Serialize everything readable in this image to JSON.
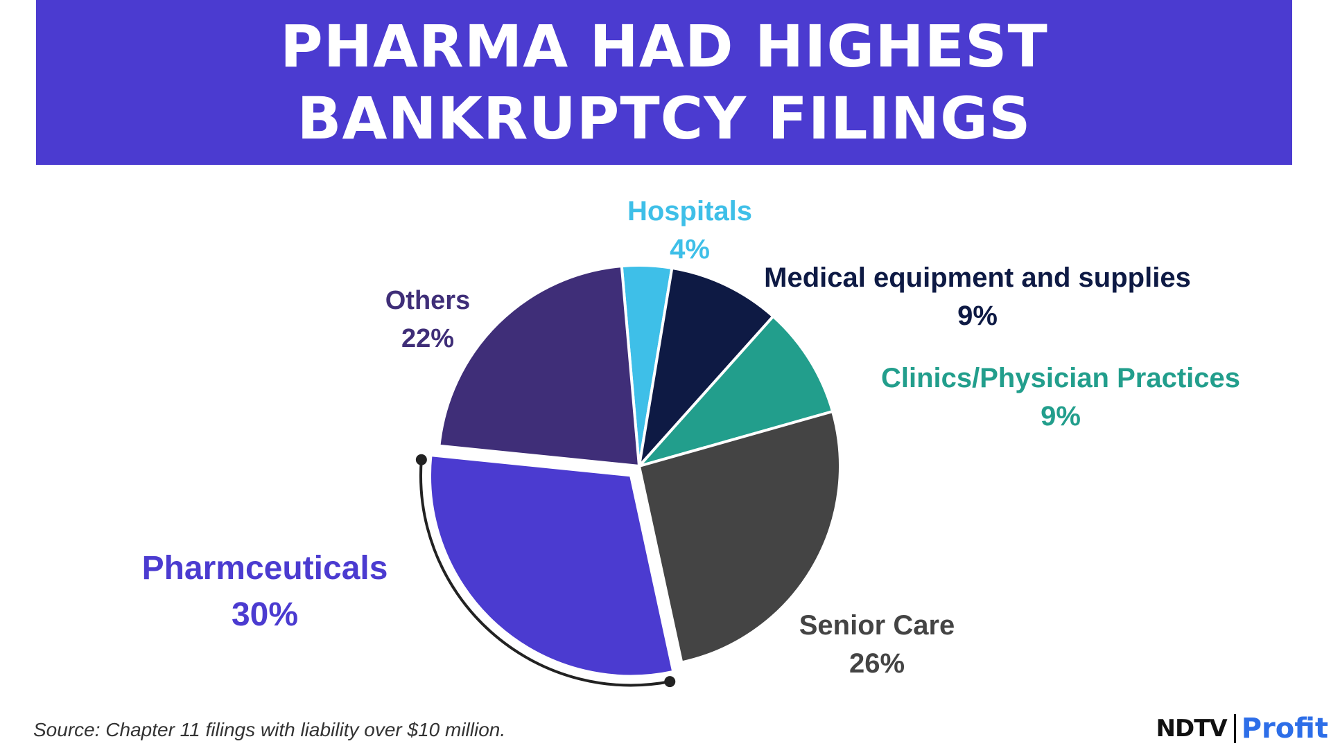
{
  "title": {
    "line1": "PHARMA HAD HIGHEST",
    "line2": "BANKRUPTCY FILINGS"
  },
  "colors": {
    "banner": "#4b3bd0",
    "pharmaceuticals": "#4b3bd0",
    "others": "#3f2e78",
    "hospitals": "#3ebfe8",
    "medical_equipment": "#0e1a44",
    "clinics": "#229e8c",
    "senior_care": "#444444",
    "brand_profit": "#2d6ee8"
  },
  "chart_data": {
    "type": "pie",
    "title": "PHARMA HAD HIGHEST BANKRUPTCY FILINGS",
    "unit": "%",
    "start_angle_deg": -5,
    "direction": "clockwise",
    "highlighted": "Pharmceuticals",
    "slices": [
      {
        "label": "Hospitals",
        "value": 4,
        "value_label": "4%",
        "color": "#3ebfe8",
        "label_color": "#3ebfe8"
      },
      {
        "label": "Medical equipment and supplies",
        "value": 9,
        "value_label": "9%",
        "color": "#0e1a44",
        "label_color": "#0e1a44"
      },
      {
        "label": "Clinics/Physician Practices",
        "value": 9,
        "value_label": "9%",
        "color": "#229e8c",
        "label_color": "#229e8c"
      },
      {
        "label": "Senior Care",
        "value": 26,
        "value_label": "26%",
        "color": "#444444",
        "label_color": "#444444"
      },
      {
        "label": "Pharmceuticals",
        "value": 30,
        "value_label": "30%",
        "color": "#4b3bd0",
        "label_color": "#4b3bd0"
      },
      {
        "label": "Others",
        "value": 22,
        "value_label": "22%",
        "color": "#3f2e78",
        "label_color": "#3f2e78"
      }
    ]
  },
  "source": "Source: Chapter 11 filings with liability over $10 million.",
  "brand": {
    "name": "NDTV",
    "product": "Profit"
  }
}
